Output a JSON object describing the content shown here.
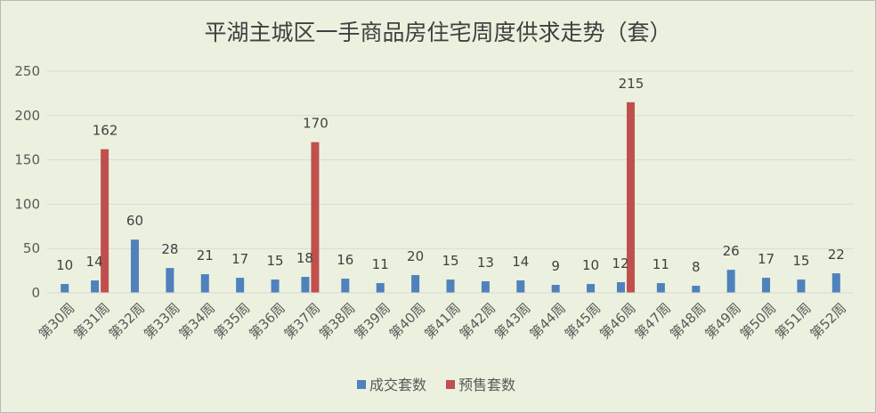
{
  "chart_data": {
    "type": "bar",
    "title": "平湖主城区一手商品房住宅周度供求走势（套）",
    "categories": [
      "第30周",
      "第31周",
      "第32周",
      "第33周",
      "第34周",
      "第35周",
      "第36周",
      "第37周",
      "第38周",
      "第39周",
      "第40周",
      "第41周",
      "第42周",
      "第43周",
      "第44周",
      "第45周",
      "第46周",
      "第47周",
      "第48周",
      "第49周",
      "第50周",
      "第51周",
      "第52周"
    ],
    "series": [
      {
        "name": "成交套数",
        "color": "#4f81bd",
        "values": [
          10,
          14,
          60,
          28,
          21,
          17,
          15,
          18,
          16,
          11,
          20,
          15,
          13,
          14,
          9,
          10,
          12,
          11,
          8,
          26,
          17,
          15,
          22
        ]
      },
      {
        "name": "预售套数",
        "color": "#c0504d",
        "values": [
          null,
          162,
          null,
          null,
          null,
          null,
          null,
          170,
          null,
          null,
          null,
          null,
          null,
          null,
          null,
          null,
          215,
          null,
          null,
          null,
          null,
          null,
          null
        ]
      }
    ],
    "ylim": [
      0,
      250
    ],
    "yticks": [
      0,
      50,
      100,
      150,
      200,
      250
    ],
    "grid": true,
    "legend": "bottom"
  }
}
